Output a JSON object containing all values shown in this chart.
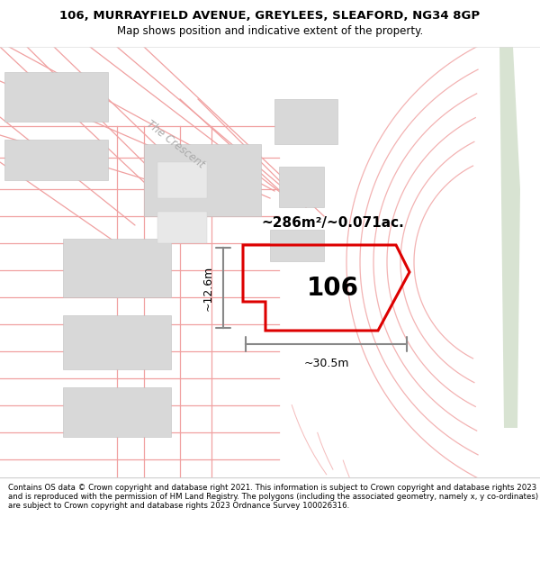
{
  "title_line1": "106, MURRAYFIELD AVENUE, GREYLEES, SLEAFORD, NG34 8GP",
  "title_line2": "Map shows position and indicative extent of the property.",
  "footer_text": "Contains OS data © Crown copyright and database right 2021. This information is subject to Crown copyright and database rights 2023 and is reproduced with the permission of HM Land Registry. The polygons (including the associated geometry, namely x, y co-ordinates) are subject to Crown copyright and database rights 2023 Ordnance Survey 100026316.",
  "area_label": "~286m²/~0.071ac.",
  "house_number": "106",
  "width_label": "~30.5m",
  "height_label": "~12.6m",
  "map_bg": "#ffffff",
  "title_bg": "#ffffff",
  "footer_bg": "#ffffff",
  "red_color": "#dd0000",
  "pink_color": "#f0a0a0",
  "road_label": "The Crescent",
  "poly_fill": "#f5f0f0",
  "green_color": "#c8d8c0",
  "gray_line": "#888888",
  "building_fill": "#d8d8d8",
  "building_edge": "#c0c0c0"
}
